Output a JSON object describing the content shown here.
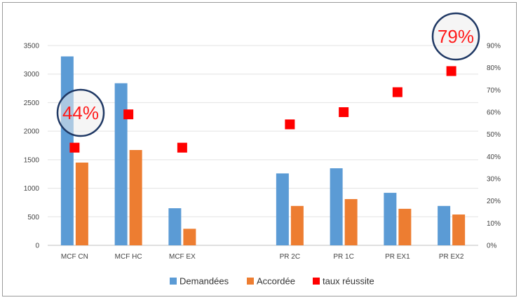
{
  "chart_data": {
    "type": "bar",
    "categories": [
      "MCF CN",
      "MCF HC",
      "MCF EX",
      "",
      "PR 2C",
      "PR 1C",
      "PR EX1",
      "PR EX2"
    ],
    "series": [
      {
        "name": "Demandées",
        "type": "bar",
        "axis": "left",
        "color": "#5b9bd5",
        "values": [
          3310,
          2840,
          650,
          null,
          1260,
          1350,
          920,
          690
        ]
      },
      {
        "name": "Accordée",
        "type": "bar",
        "axis": "left",
        "color": "#ed7d31",
        "values": [
          1450,
          1670,
          290,
          null,
          690,
          810,
          640,
          540
        ]
      },
      {
        "name": "taux réussite",
        "type": "scatter",
        "axis": "right",
        "color": "#ff0000",
        "values": [
          0.44,
          0.59,
          0.44,
          null,
          0.545,
          0.6,
          0.69,
          0.785
        ]
      }
    ],
    "y_left": {
      "min": 0,
      "max": 3500,
      "ticks": [
        "0",
        "500",
        "1000",
        "1500",
        "2000",
        "2500",
        "3000",
        "3500"
      ]
    },
    "y_right": {
      "min": 0,
      "max": 0.9,
      "ticks": [
        "0%",
        "10%",
        "20%",
        "30%",
        "40%",
        "50%",
        "60%",
        "70%",
        "80%",
        "90%"
      ]
    },
    "gridlines": true,
    "legend_position": "bottom",
    "callouts": [
      {
        "text": "44%",
        "category_index": 0
      },
      {
        "text": "79%",
        "category_index": 7
      }
    ]
  }
}
